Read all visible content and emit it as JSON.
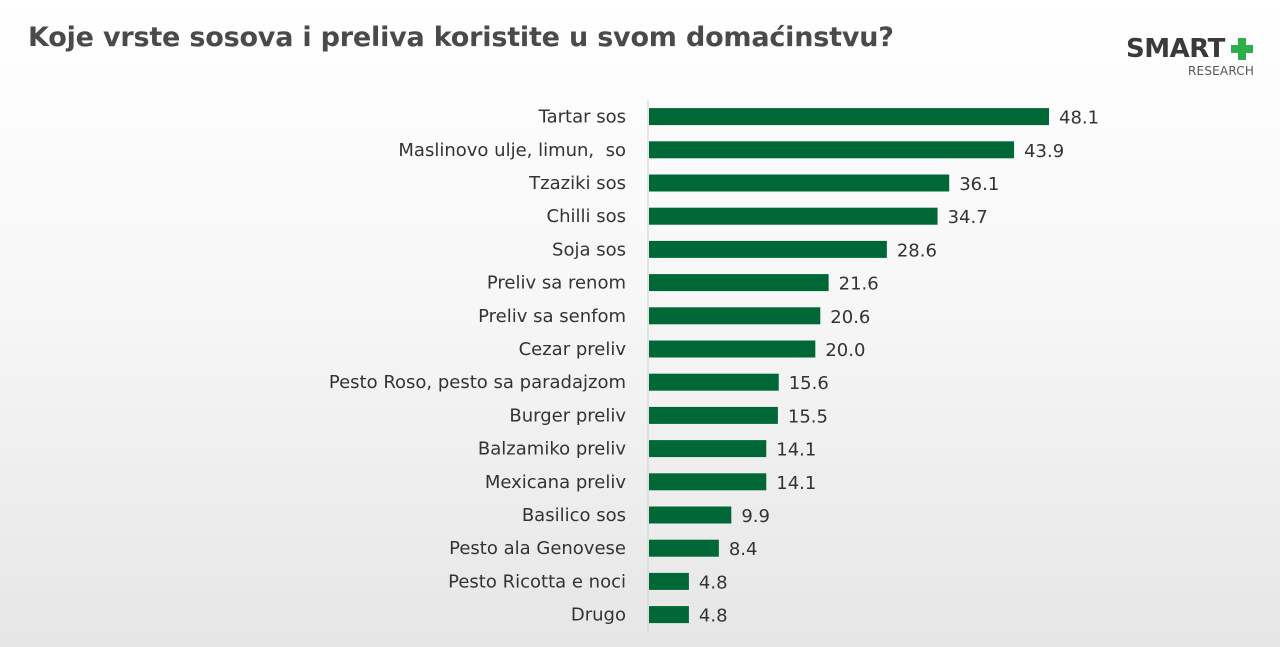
{
  "title": "Koje vrste sosova i preliva koristite u svom domaćinstvu?",
  "logo": {
    "name": "SMART",
    "sub": "RESEARCH"
  },
  "colors": {
    "bar": "#006837",
    "logo_plus": "#2db04b",
    "axis": "#d0d0d0"
  },
  "chart_data": {
    "type": "bar",
    "orientation": "horizontal",
    "categories": [
      "Tartar sos",
      "Maslinovo ulje, limun,  so",
      "Tzaziki sos",
      "Chilli sos",
      "Soja sos",
      "Preliv sa renom",
      "Preliv sa senfom",
      "Cezar preliv",
      "Pesto Roso, pesto sa paradajzom",
      "Burger preliv",
      "Balzamiko preliv",
      "Mexicana preliv",
      "Basilico sos",
      "Pesto ala Genovese",
      "Pesto Ricotta e noci",
      "Drugo"
    ],
    "values": [
      48.1,
      43.9,
      36.1,
      34.7,
      28.6,
      21.6,
      20.6,
      20.0,
      15.6,
      15.5,
      14.1,
      14.1,
      9.9,
      8.4,
      4.8,
      4.8
    ],
    "value_labels": [
      "48.1",
      "43.9",
      "36.1",
      "34.7",
      "28.6",
      "21.6",
      "20.6",
      "20.0",
      "15.6",
      "15.5",
      "14.1",
      "14.1",
      "9.9",
      "8.4",
      "4.8",
      "4.8"
    ],
    "xlim": [
      0,
      48.1
    ],
    "grid": false,
    "legend": "none"
  }
}
